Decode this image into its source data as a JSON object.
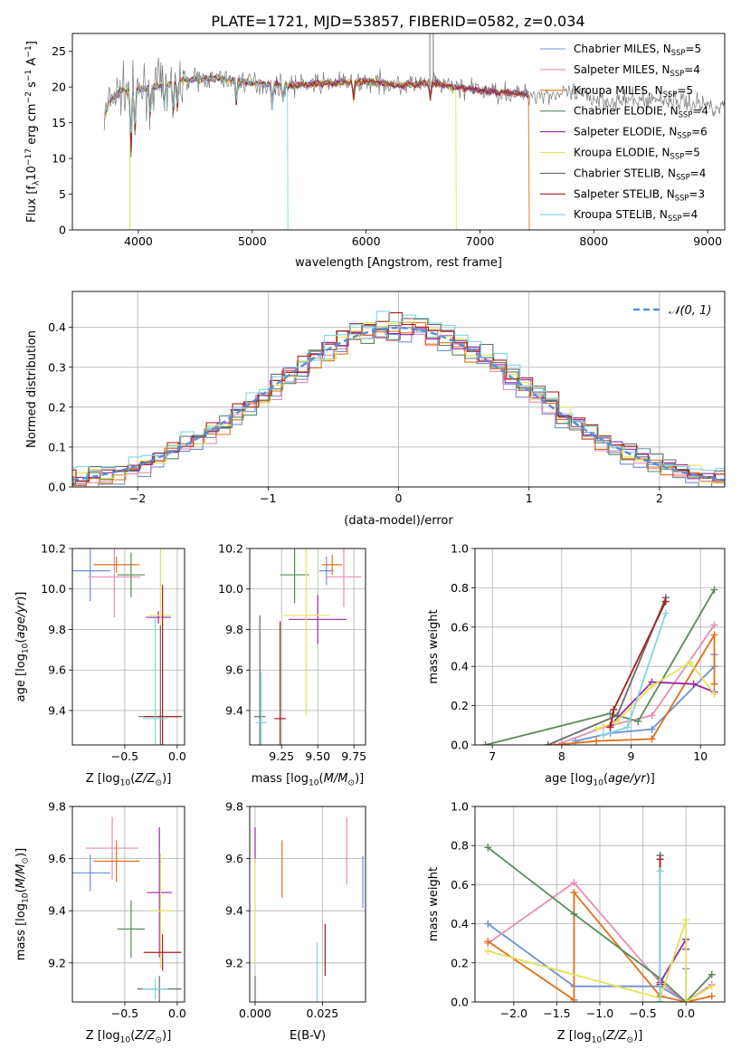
{
  "figure": {
    "title": "PLATE=1721, MJD=53857, FIBERID=0582, z=0.034"
  },
  "colors": {
    "c0": "#6f8fd8",
    "c1": "#e58cb8",
    "c2": "#e0701a",
    "c3": "#5a8a5a",
    "c4": "#9a27a8",
    "c5": "#e3e35a",
    "c6": "#6b6b6b",
    "c7": "#a61c1c",
    "c8": "#7fd6e0",
    "gaussian": "#5b8ed6"
  },
  "models": [
    {
      "name": "Chabrier MILES",
      "nssp": "5",
      "color": "c0"
    },
    {
      "name": "Salpeter MILES",
      "nssp": "4",
      "color": "c1"
    },
    {
      "name": "Kroupa MILES",
      "nssp": "5",
      "color": "c2"
    },
    {
      "name": "Chabrier ELODIE",
      "nssp": "4",
      "color": "c3"
    },
    {
      "name": "Salpeter ELODIE",
      "nssp": "6",
      "color": "c4"
    },
    {
      "name": "Kroupa ELODIE",
      "nssp": "5",
      "color": "c5"
    },
    {
      "name": "Chabrier STELIB",
      "nssp": "4",
      "color": "c6"
    },
    {
      "name": "Salpeter STELIB",
      "nssp": "3",
      "color": "c7"
    },
    {
      "name": "Kroupa STELIB",
      "nssp": "4",
      "color": "c8"
    }
  ],
  "chart_data": [
    {
      "id": "spectrum",
      "type": "line",
      "xlabel": "wavelength [Angstrom, rest frame]",
      "ylabel": "Flux [f_λ 10^-17 erg cm^-2 s^-1 A^-1]",
      "xlim": [
        3420,
        9150
      ],
      "ylim": [
        0,
        27.5
      ],
      "xticks": [
        4000,
        5000,
        6000,
        7000,
        8000,
        9000
      ],
      "yticks": [
        0,
        5,
        10,
        15,
        20,
        25
      ],
      "legend": "top-right",
      "observed_x_range": [
        3700,
        9200
      ],
      "model_x_range": [
        3700,
        7430
      ],
      "continuum": [
        [
          3700,
          15.5
        ],
        [
          3750,
          18.2
        ],
        [
          3850,
          19.5
        ],
        [
          4000,
          19.6
        ],
        [
          4200,
          20.3
        ],
        [
          4400,
          21.0
        ],
        [
          4700,
          21.2
        ],
        [
          5000,
          20.6
        ],
        [
          5300,
          20.2
        ],
        [
          5700,
          20.6
        ],
        [
          6000,
          20.8
        ],
        [
          6300,
          20.3
        ],
        [
          6600,
          20.5
        ],
        [
          7000,
          19.5
        ],
        [
          7400,
          19.0
        ],
        [
          7800,
          19.0
        ],
        [
          8200,
          18.0
        ],
        [
          8600,
          18.3
        ],
        [
          9000,
          17.5
        ],
        [
          9200,
          17.0
        ]
      ]
    },
    {
      "id": "residuals",
      "type": "bar",
      "xlabel": "(data-model)/error",
      "ylabel": "Normed distribution",
      "xlim": [
        -2.5,
        2.5
      ],
      "ylim": [
        0,
        0.49
      ],
      "xticks": [
        -2,
        -1,
        0,
        1,
        2
      ],
      "yticks": [
        0.0,
        0.1,
        0.2,
        0.3,
        0.4
      ],
      "grid": true,
      "legend": "top-right",
      "gaussian_label": "𝒩(0, 1)",
      "bin_width": 0.1
    },
    {
      "id": "age_vs_Z",
      "type": "scatter",
      "xlabel": "Z [log10(Z/Z⊙)]",
      "ylabel": "age [log10(age/yr)]",
      "xlim": [
        -1.0,
        0.07
      ],
      "ylim": [
        9.23,
        10.2
      ],
      "xticks": [
        -0.5,
        0.0
      ],
      "yticks": [
        9.4,
        9.6,
        9.8,
        10.0,
        10.2
      ],
      "grid": true,
      "points": [
        {
          "color": "c0",
          "x": -0.83,
          "xerr": 0.19,
          "y": 10.09,
          "yerr": 0.15
        },
        {
          "color": "c1",
          "x": -0.6,
          "xerr": 0.25,
          "y": 10.06,
          "yerr": 0.2
        },
        {
          "color": "c2",
          "x": -0.58,
          "xerr": 0.22,
          "y": 10.12,
          "yerr": 0.04
        },
        {
          "color": "c3",
          "x": -0.44,
          "xerr": 0.13,
          "y": 10.07,
          "yerr": 0.11
        },
        {
          "color": "c4",
          "x": -0.18,
          "xerr": 0.12,
          "y": 9.86,
          "yerr": 0.03
        },
        {
          "color": "c5",
          "x": -0.16,
          "xerr": 0.11,
          "y": 9.87,
          "yerr": 0.6
        },
        {
          "color": "c6",
          "x": -0.16,
          "xerr": 0.21,
          "y": 9.37,
          "yerr": 0.45
        },
        {
          "color": "c7",
          "x": -0.14,
          "xerr": 0.18,
          "y": 9.37,
          "yerr": 0.65
        },
        {
          "color": "c8",
          "x": -0.21,
          "xerr": 0.12,
          "y": 9.36,
          "yerr": 0.5
        }
      ]
    },
    {
      "id": "age_vs_mass",
      "type": "scatter",
      "xlabel": "mass [log10(M/M⊙)]",
      "ylabel": "",
      "xlim": [
        9.03,
        9.83
      ],
      "ylim": [
        9.23,
        10.2
      ],
      "xticks": [
        9.25,
        9.5,
        9.75
      ],
      "yticks": [
        9.4,
        9.6,
        9.8,
        10.0,
        10.2
      ],
      "grid": true,
      "points": [
        {
          "color": "c0",
          "x": 9.56,
          "xerr": 0.05,
          "y": 10.09,
          "yerr": 0.07
        },
        {
          "color": "c1",
          "x": 9.68,
          "xerr": 0.12,
          "y": 10.06,
          "yerr": 0.15
        },
        {
          "color": "c2",
          "x": 9.6,
          "xerr": 0.07,
          "y": 10.12,
          "yerr": 0.05
        },
        {
          "color": "c3",
          "x": 9.34,
          "xerr": 0.1,
          "y": 10.07,
          "yerr": 0.14
        },
        {
          "color": "c4",
          "x": 9.5,
          "xerr": 0.2,
          "y": 9.85,
          "yerr": 0.12
        },
        {
          "color": "c5",
          "x": 9.42,
          "xerr": 0.16,
          "y": 9.87,
          "yerr": 0.5
        },
        {
          "color": "c6",
          "x": 9.1,
          "xerr": 0.04,
          "y": 9.37,
          "yerr": 0.5
        },
        {
          "color": "c7",
          "x": 9.24,
          "xerr": 0.04,
          "y": 9.36,
          "yerr": 0.48
        },
        {
          "color": "c8",
          "x": 9.11,
          "xerr": 0.04,
          "y": 9.34,
          "yerr": 0.25
        }
      ]
    },
    {
      "id": "weight_vs_age",
      "type": "line",
      "xlabel": "age [log10(age/yr)]",
      "ylabel": "mass weight",
      "xlim": [
        6.75,
        10.35
      ],
      "ylim": [
        0,
        1.0
      ],
      "xticks": [
        7,
        8,
        9,
        10
      ],
      "yticks": [
        0.0,
        0.2,
        0.4,
        0.6,
        0.8,
        1.0
      ],
      "grid": true,
      "series": [
        {
          "color": "c0",
          "points": [
            [
              8.2,
              0.02
            ],
            [
              8.7,
              0.06
            ],
            [
              9.3,
              0.08
            ],
            [
              10.2,
              0.4
            ],
            [
              10.2,
              0.46
            ]
          ]
        },
        {
          "color": "c1",
          "points": [
            [
              8.0,
              0.01
            ],
            [
              8.6,
              0.09
            ],
            [
              9.3,
              0.15
            ],
            [
              10.2,
              0.61
            ]
          ]
        },
        {
          "color": "c2",
          "points": [
            [
              7.9,
              0.0
            ],
            [
              8.5,
              0.02
            ],
            [
              9.3,
              0.03
            ],
            [
              10.2,
              0.56
            ],
            [
              10.2,
              0.31
            ]
          ]
        },
        {
          "color": "c3",
          "points": [
            [
              6.9,
              0.0
            ],
            [
              8.7,
              0.16
            ],
            [
              9.1,
              0.12
            ],
            [
              10.2,
              0.79
            ]
          ]
        },
        {
          "color": "c4",
          "points": [
            [
              8.7,
              0.1
            ],
            [
              9.3,
              0.32
            ],
            [
              9.9,
              0.31
            ],
            [
              10.2,
              0.27
            ]
          ]
        },
        {
          "color": "c5",
          "points": [
            [
              8.5,
              0.08
            ],
            [
              8.8,
              0.12
            ],
            [
              9.3,
              0.3
            ],
            [
              9.85,
              0.42
            ],
            [
              10.2,
              0.26
            ]
          ]
        },
        {
          "color": "c6",
          "points": [
            [
              7.8,
              0.0
            ],
            [
              8.8,
              0.15
            ],
            [
              9.5,
              0.75
            ]
          ]
        },
        {
          "color": "c7",
          "points": [
            [
              8.7,
              0.09
            ],
            [
              8.75,
              0.18
            ],
            [
              9.5,
              0.73
            ]
          ]
        },
        {
          "color": "c8",
          "points": [
            [
              8.6,
              0.05
            ],
            [
              8.95,
              0.09
            ],
            [
              9.5,
              0.67
            ]
          ]
        }
      ]
    },
    {
      "id": "mass_vs_Z",
      "type": "scatter",
      "xlabel": "Z [log10(Z/Z⊙)]",
      "ylabel": "mass [log10(M/M⊙)]",
      "xlim": [
        -1.0,
        0.07
      ],
      "ylim": [
        9.05,
        9.8
      ],
      "xticks": [
        -0.5,
        0.0
      ],
      "yticks": [
        9.2,
        9.4,
        9.6,
        9.8
      ],
      "grid": true,
      "points": [
        {
          "color": "c0",
          "x": -0.83,
          "xerr": 0.19,
          "y": 9.545,
          "yerr": 0.07
        },
        {
          "color": "c1",
          "x": -0.62,
          "xerr": 0.25,
          "y": 9.64,
          "yerr": 0.12
        },
        {
          "color": "c2",
          "x": -0.58,
          "xerr": 0.22,
          "y": 9.59,
          "yerr": 0.08
        },
        {
          "color": "c3",
          "x": -0.44,
          "xerr": 0.13,
          "y": 9.33,
          "yerr": 0.11
        },
        {
          "color": "c4",
          "x": -0.17,
          "xerr": 0.12,
          "y": 9.47,
          "yerr": 0.25
        },
        {
          "color": "c5",
          "x": -0.16,
          "xerr": 0.11,
          "y": 9.4,
          "yerr": 0.22
        },
        {
          "color": "c6",
          "x": -0.17,
          "xerr": 0.21,
          "y": 9.1,
          "yerr": 0.05
        },
        {
          "color": "c7",
          "x": -0.14,
          "xerr": 0.18,
          "y": 9.24,
          "yerr": 0.07
        },
        {
          "color": "c8",
          "x": -0.21,
          "xerr": 0.12,
          "y": 9.1,
          "yerr": 0.04
        }
      ]
    },
    {
      "id": "mass_vs_EBV",
      "type": "scatter",
      "xlabel": "E(B-V)",
      "ylabel": "",
      "xlim": [
        -0.002,
        0.041
      ],
      "ylim": [
        9.05,
        9.8
      ],
      "xticks": [
        0.0,
        0.025
      ],
      "yticks": [
        9.2,
        9.4,
        9.6,
        9.8
      ],
      "grid": true,
      "points": [
        {
          "color": "c0",
          "x": 0.04,
          "y": 9.51,
          "yerr": 0.1
        },
        {
          "color": "c1",
          "x": 0.034,
          "y": 9.63,
          "yerr": 0.13
        },
        {
          "color": "c2",
          "x": 0.01,
          "y": 9.56,
          "yerr": 0.11
        },
        {
          "color": "c4",
          "x": 0.0,
          "y": 9.65,
          "yerr": 0.07
        },
        {
          "color": "c5",
          "x": 0.0,
          "y": 9.4,
          "yerr": 0.2
        },
        {
          "color": "c6",
          "x": 0.0,
          "y": 9.1,
          "yerr": 0.05
        },
        {
          "color": "c7",
          "x": 0.026,
          "y": 9.25,
          "yerr": 0.1
        },
        {
          "color": "c8",
          "x": 0.023,
          "y": 9.16,
          "yerr": 0.12
        }
      ]
    },
    {
      "id": "weight_vs_Z",
      "type": "line",
      "xlabel": "Z [log10(Z/Z⊙)]",
      "ylabel": "mass weight",
      "xlim": [
        -2.45,
        0.45
      ],
      "ylim": [
        0,
        1.0
      ],
      "xticks": [
        -2.0,
        -1.5,
        -1.0,
        -0.5,
        0.0
      ],
      "yticks": [
        0.0,
        0.2,
        0.4,
        0.6,
        0.8,
        1.0
      ],
      "grid": true,
      "series": [
        {
          "color": "c0",
          "points": [
            [
              -2.3,
              0.4
            ],
            [
              -1.3,
              0.08
            ],
            [
              -0.3,
              0.08
            ],
            [
              0.0,
              0.0
            ],
            [
              0.0,
              0.17
            ]
          ]
        },
        {
          "color": "c1",
          "points": [
            [
              -2.3,
              0.3
            ],
            [
              -1.3,
              0.61
            ],
            [
              -0.3,
              0.1
            ],
            [
              0.0,
              0.0
            ],
            [
              0.3,
              0.09
            ]
          ]
        },
        {
          "color": "c2",
          "points": [
            [
              -2.3,
              0.31
            ],
            [
              -1.3,
              0.01
            ],
            [
              -1.3,
              0.56
            ],
            [
              -0.3,
              0.03
            ],
            [
              0.0,
              0.0
            ],
            [
              0.3,
              0.03
            ]
          ]
        },
        {
          "color": "c3",
          "points": [
            [
              -2.3,
              0.79
            ],
            [
              -1.3,
              0.45
            ],
            [
              -0.3,
              0.12
            ],
            [
              0.0,
              0.0
            ],
            [
              0.3,
              0.14
            ]
          ]
        },
        {
          "color": "c4",
          "points": [
            [
              -0.3,
              0.1
            ],
            [
              0.0,
              0.32
            ],
            [
              0.0,
              0.27
            ]
          ]
        },
        {
          "color": "c5",
          "points": [
            [
              -2.3,
              0.26
            ],
            [
              -0.3,
              0.02
            ],
            [
              0.0,
              0.42
            ],
            [
              0.0,
              0.0
            ],
            [
              0.3,
              0.08
            ]
          ]
        },
        {
          "color": "c6",
          "points": [
            [
              -0.3,
              0.0
            ],
            [
              -0.3,
              0.75
            ]
          ]
        },
        {
          "color": "c7",
          "points": [
            [
              -0.3,
              0.09
            ],
            [
              -0.3,
              0.73
            ]
          ]
        },
        {
          "color": "c8",
          "points": [
            [
              -0.3,
              0.0
            ],
            [
              -0.3,
              0.67
            ]
          ]
        }
      ]
    }
  ]
}
